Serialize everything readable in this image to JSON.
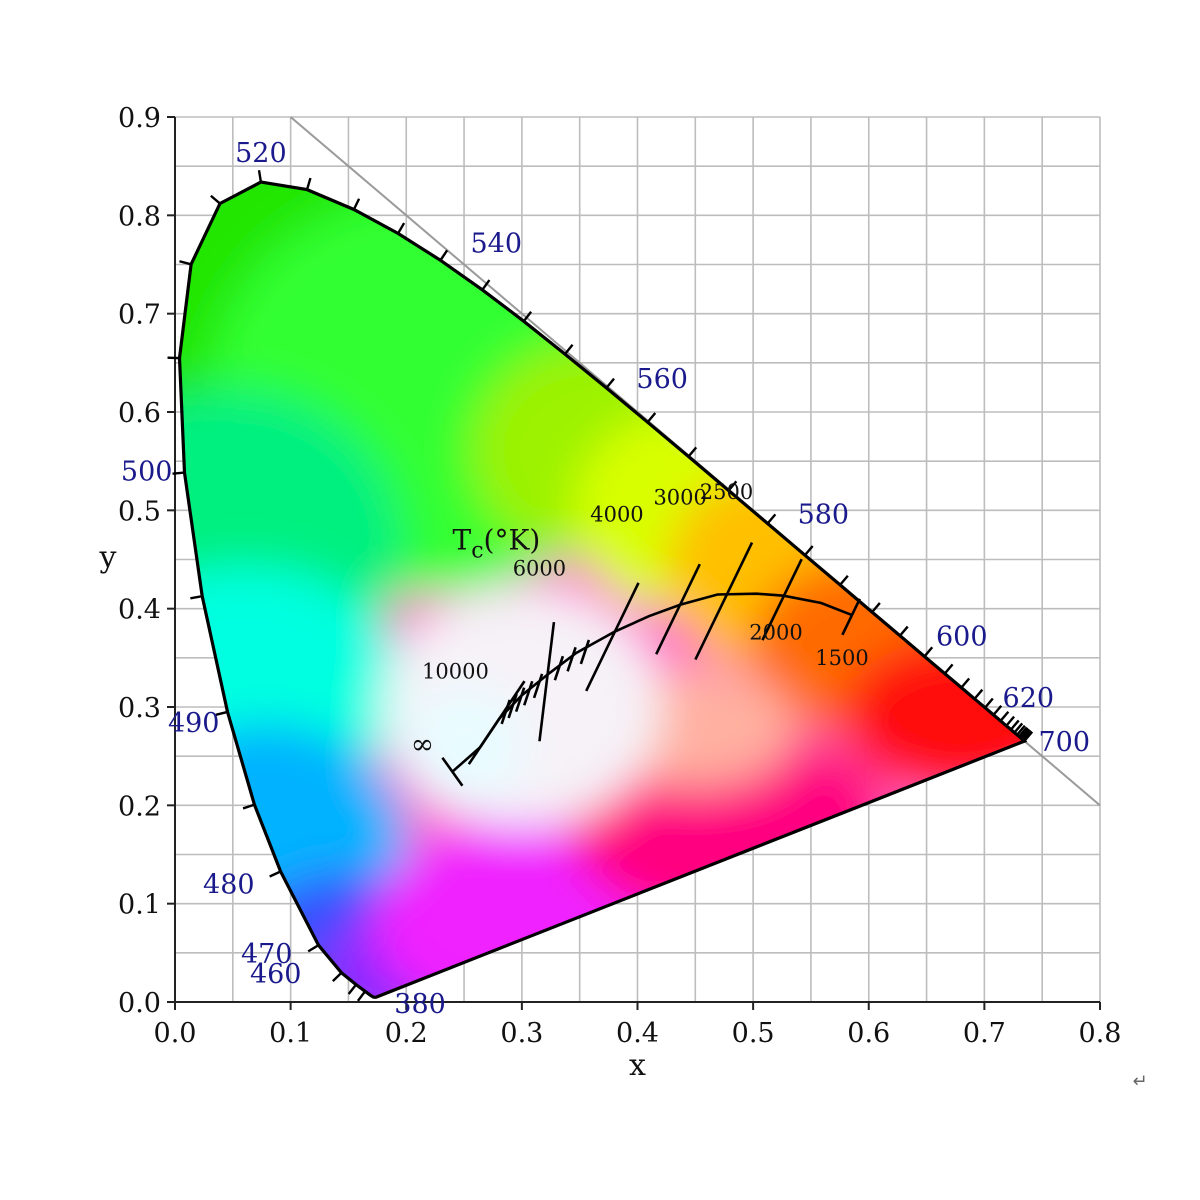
{
  "chart_data": {
    "type": "scatter",
    "title": "",
    "xlabel": "x",
    "ylabel": "y",
    "xlim": [
      0.0,
      0.8
    ],
    "ylim": [
      0.0,
      0.9
    ],
    "grid": true,
    "x_ticks": [
      "0.0",
      "0.1",
      "0.2",
      "0.3",
      "0.4",
      "0.5",
      "0.6",
      "0.7",
      "0.8"
    ],
    "y_ticks": [
      "0.0",
      "0.1",
      "0.2",
      "0.3",
      "0.4",
      "0.5",
      "0.6",
      "0.7",
      "0.8",
      "0.9"
    ],
    "spectral_locus": [
      [
        0.1741,
        0.005
      ],
      [
        0.1738,
        0.0049
      ],
      [
        0.1733,
        0.0048
      ],
      [
        0.1726,
        0.0048
      ],
      [
        0.1714,
        0.0051
      ],
      [
        0.1689,
        0.0069
      ],
      [
        0.1644,
        0.0109
      ],
      [
        0.1566,
        0.0177
      ],
      [
        0.144,
        0.0297
      ],
      [
        0.1241,
        0.0578
      ],
      [
        0.0913,
        0.1327
      ],
      [
        0.0687,
        0.2007
      ],
      [
        0.0454,
        0.295
      ],
      [
        0.0235,
        0.4127
      ],
      [
        0.0082,
        0.5384
      ],
      [
        0.0039,
        0.6548
      ],
      [
        0.0139,
        0.7502
      ],
      [
        0.0389,
        0.812
      ],
      [
        0.0743,
        0.8338
      ],
      [
        0.1142,
        0.8262
      ],
      [
        0.1547,
        0.8059
      ],
      [
        0.1929,
        0.7816
      ],
      [
        0.2296,
        0.7543
      ],
      [
        0.2658,
        0.7243
      ],
      [
        0.3016,
        0.6923
      ],
      [
        0.3373,
        0.6589
      ],
      [
        0.3731,
        0.6245
      ],
      [
        0.4087,
        0.5896
      ],
      [
        0.4441,
        0.5547
      ],
      [
        0.4788,
        0.5202
      ],
      [
        0.5125,
        0.4866
      ],
      [
        0.5448,
        0.4544
      ],
      [
        0.5752,
        0.4242
      ],
      [
        0.6029,
        0.3965
      ],
      [
        0.627,
        0.3725
      ],
      [
        0.6482,
        0.3514
      ],
      [
        0.6658,
        0.334
      ],
      [
        0.6801,
        0.3197
      ],
      [
        0.6915,
        0.3083
      ],
      [
        0.7006,
        0.2993
      ],
      [
        0.7079,
        0.292
      ],
      [
        0.714,
        0.2859
      ],
      [
        0.719,
        0.2809
      ],
      [
        0.723,
        0.277
      ],
      [
        0.726,
        0.274
      ],
      [
        0.7283,
        0.2717
      ],
      [
        0.73,
        0.27
      ],
      [
        0.7311,
        0.2689
      ],
      [
        0.732,
        0.268
      ],
      [
        0.7327,
        0.2673
      ],
      [
        0.7334,
        0.2666
      ],
      [
        0.734,
        0.266
      ],
      [
        0.7344,
        0.2656
      ],
      [
        0.7346,
        0.2654
      ],
      [
        0.7347,
        0.2653
      ]
    ],
    "wavelength_labels": [
      {
        "label": "520",
        "x": 0.0743,
        "y": 0.8338
      },
      {
        "label": "540",
        "x": 0.2296,
        "y": 0.7543
      },
      {
        "label": "560",
        "x": 0.3731,
        "y": 0.6245
      },
      {
        "label": "580",
        "x": 0.5125,
        "y": 0.4866
      },
      {
        "label": "600",
        "x": 0.627,
        "y": 0.3725
      },
      {
        "label": "620",
        "x": 0.6915,
        "y": 0.3083
      },
      {
        "label": "700",
        "x": 0.7347,
        "y": 0.2653
      },
      {
        "label": "500",
        "x": 0.0082,
        "y": 0.5384
      },
      {
        "label": "490",
        "x": 0.0454,
        "y": 0.295
      },
      {
        "label": "480",
        "x": 0.0913,
        "y": 0.1327
      },
      {
        "label": "470",
        "x": 0.1241,
        "y": 0.0578
      },
      {
        "label": "460",
        "x": 0.144,
        "y": 0.0297
      },
      {
        "label": "380",
        "x": 0.1741,
        "y": 0.005
      }
    ],
    "planckian_locus": [
      [
        0.2399,
        0.2342
      ],
      [
        0.2638,
        0.2589
      ],
      [
        0.2806,
        0.2883
      ],
      [
        0.2998,
        0.3117
      ],
      [
        0.3241,
        0.3347
      ],
      [
        0.347,
        0.3549
      ],
      [
        0.3802,
        0.3766
      ],
      [
        0.4099,
        0.3923
      ],
      [
        0.4372,
        0.4041
      ],
      [
        0.4692,
        0.4144
      ],
      [
        0.5029,
        0.4152
      ],
      [
        0.5263,
        0.4132
      ],
      [
        0.5589,
        0.4058
      ],
      [
        0.5855,
        0.3935
      ]
    ],
    "isotherms": [
      {
        "label": "10000",
        "x": 0.2806,
        "y": 0.2883
      },
      {
        "label": "6000",
        "x": 0.3221,
        "y": 0.3318
      },
      {
        "label": "4000",
        "x": 0.3805,
        "y": 0.3768
      },
      {
        "label": "3000",
        "x": 0.4369,
        "y": 0.4041
      },
      {
        "label": "2500",
        "x": 0.477,
        "y": 0.4137
      },
      {
        "label": "2000",
        "x": 0.5267,
        "y": 0.4133
      },
      {
        "label": "1500",
        "x": 0.5855,
        "y": 0.3935
      }
    ],
    "minor_isotherm_ticks": [
      [
        0.286,
        0.295
      ],
      [
        0.292,
        0.301
      ],
      [
        0.2985,
        0.3075
      ],
      [
        0.3055,
        0.314
      ],
      [
        0.314,
        0.3215
      ],
      [
        0.332,
        0.3395
      ],
      [
        0.343,
        0.3485
      ],
      [
        0.3545,
        0.356
      ]
    ],
    "infinity_label": "∞",
    "infinity_point": [
      0.2399,
      0.2342
    ],
    "tc_label_main": "T",
    "tc_label_sub": "c",
    "tc_label_rest": "(°K)",
    "tc_label_pos": [
      0.24,
      0.46
    ],
    "reference_line": [
      [
        0.1,
        0.9
      ],
      [
        0.8,
        0.2
      ]
    ],
    "return_glyph": "↵",
    "colors": {
      "white_point": "#ffffff",
      "locus_stroke": "#000000",
      "grid": "#bdbdbd",
      "wavelength_text": "#1a1a8c"
    }
  }
}
